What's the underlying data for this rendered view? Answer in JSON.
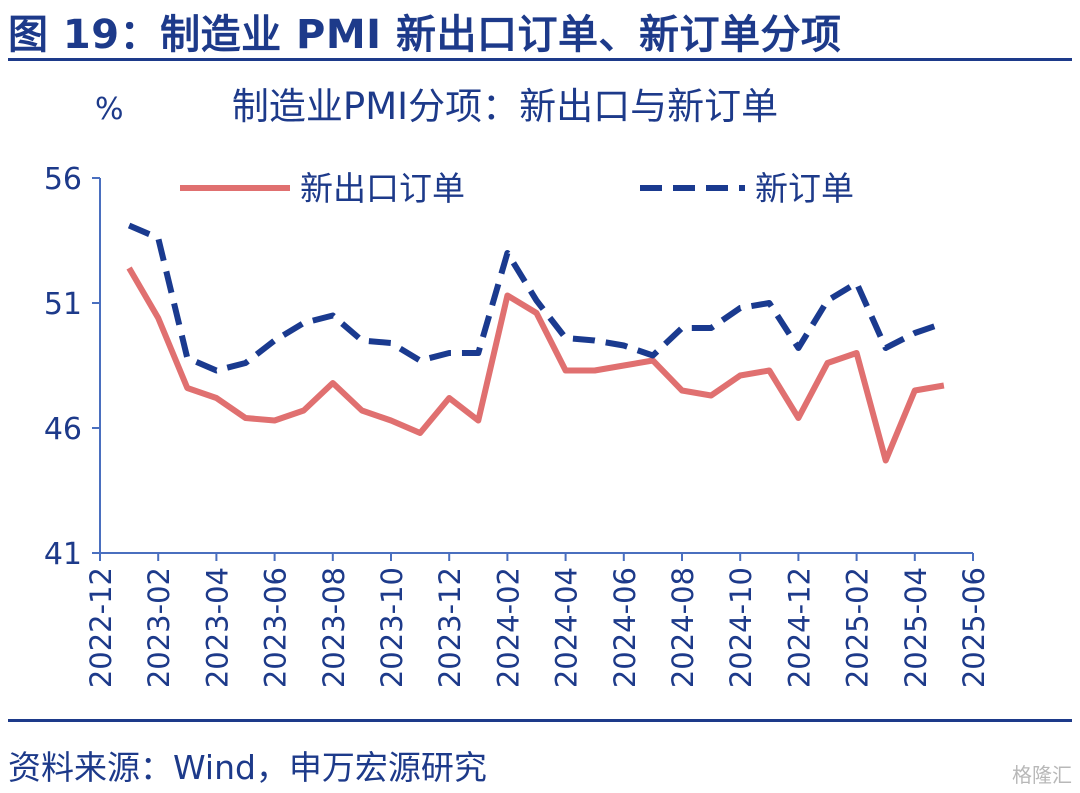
{
  "header": {
    "title": "图 19：制造业 PMI 新出口订单、新订单分项"
  },
  "footer": {
    "source": "资料来源：Wind，申万宏源研究",
    "watermark": "格隆汇"
  },
  "chart_data": {
    "type": "line",
    "title": "制造业PMI分项：新出口与新订单",
    "ylabel": "%",
    "xlabel": "",
    "ylim": [
      41,
      56
    ],
    "yticks": [
      41,
      46,
      51,
      56
    ],
    "x": [
      "2022-12",
      "2023-01",
      "2023-02",
      "2023-03",
      "2023-04",
      "2023-05",
      "2023-06",
      "2023-07",
      "2023-08",
      "2023-09",
      "2023-10",
      "2023-11",
      "2023-12",
      "2024-01",
      "2024-02",
      "2024-03",
      "2024-04",
      "2024-05",
      "2024-06",
      "2024-07",
      "2024-08",
      "2024-09",
      "2024-10",
      "2024-11",
      "2024-12",
      "2025-01",
      "2025-02",
      "2025-03",
      "2025-04",
      "2025-05",
      "2025-06"
    ],
    "xticks": [
      "2022-12",
      "2023-02",
      "2023-04",
      "2023-06",
      "2023-08",
      "2023-10",
      "2023-12",
      "2024-02",
      "2024-04",
      "2024-06",
      "2024-08",
      "2024-10",
      "2024-12",
      "2025-02",
      "2025-04",
      "2025-06"
    ],
    "legend_position": "top",
    "series": [
      {
        "name": "新出口订单",
        "color": "#e07070",
        "dash": "solid",
        "values": [
          null,
          52.4,
          50.4,
          47.6,
          47.2,
          46.4,
          46.3,
          46.7,
          47.8,
          46.7,
          46.3,
          45.8,
          47.2,
          46.3,
          51.3,
          50.6,
          48.3,
          48.3,
          48.5,
          48.7,
          47.5,
          47.3,
          48.1,
          48.3,
          46.4,
          48.6,
          49.0,
          44.7,
          47.5,
          47.7,
          null
        ]
      },
      {
        "name": "新订单",
        "color": "#1a3a8f",
        "dash": "dashed",
        "values": [
          null,
          54.1,
          53.6,
          48.8,
          48.3,
          48.6,
          49.5,
          50.2,
          50.5,
          49.5,
          49.4,
          48.7,
          49.0,
          49.0,
          53.0,
          51.1,
          49.6,
          49.5,
          49.3,
          48.9,
          50.0,
          50.0,
          50.8,
          51.0,
          49.2,
          51.1,
          51.8,
          49.2,
          49.8,
          50.2,
          null
        ]
      }
    ]
  }
}
